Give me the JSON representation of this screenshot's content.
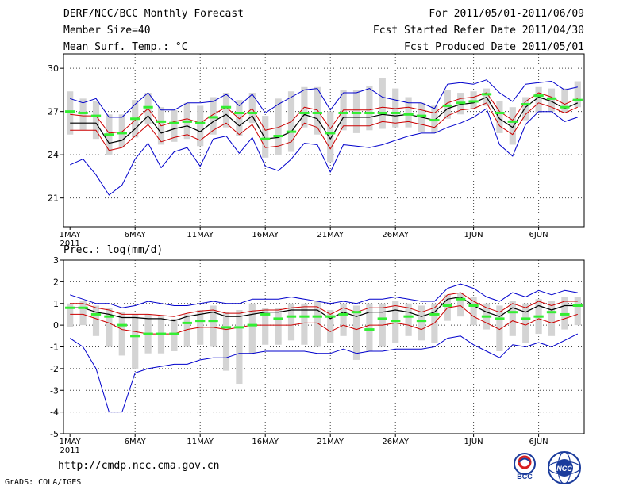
{
  "header": {
    "line1_left": "DERF/NCC/BCC Monthly Forecast",
    "line2_left": "Member Size=40",
    "line3_left": "Mean Surf. Temp.: °C",
    "line1_right": "For 2011/05/01-2011/06/09",
    "line2_right": "Fcst Started Refer Date 2011/04/30",
    "line3_right": "Fcst Produced Date 2011/05/01"
  },
  "precip_title": "Prec.: log(mm/d)",
  "footer": {
    "url": "http://cmdp.ncc.cma.gov.cn",
    "credit": "GrADS: COLA/IGES",
    "logo_left_text": "BCC",
    "logo_right_text": "NCC"
  },
  "colors": {
    "envelope": "#0000cc",
    "spread": "#cc0000",
    "mean": "#000000",
    "marker": "#33ee33",
    "bar": "#d4d4d4",
    "grid": "#444444"
  },
  "chart_data": [
    {
      "type": "line",
      "name": "temperature",
      "ylabel": "Mean Surf. Temp. (°C)",
      "x_tick_labels": [
        "1MAY",
        "6MAY",
        "11MAY",
        "16MAY",
        "21MAY",
        "26MAY",
        "1JUN",
        "6JUN"
      ],
      "x_tick_days": [
        1,
        6,
        11,
        16,
        21,
        26,
        32,
        37
      ],
      "x_year_label": "2011",
      "x_range": [
        0.5,
        40.5
      ],
      "ylim": [
        19.0,
        31.0
      ],
      "y_ticks": [
        21,
        24,
        27,
        30
      ],
      "y_tick_labels": [
        "21",
        "24",
        "27",
        "30"
      ],
      "days": [
        1,
        2,
        3,
        4,
        5,
        6,
        7,
        8,
        9,
        10,
        11,
        12,
        13,
        14,
        15,
        16,
        17,
        18,
        19,
        20,
        21,
        22,
        23,
        24,
        25,
        26,
        27,
        28,
        29,
        30,
        31,
        32,
        33,
        34,
        35,
        36,
        37,
        38,
        39,
        40
      ],
      "series": [
        {
          "name": "ensemble-mean",
          "values": [
            26.2,
            26.2,
            26.2,
            24.8,
            25.0,
            25.8,
            26.7,
            25.5,
            25.8,
            26.0,
            25.6,
            26.3,
            26.8,
            26.0,
            26.7,
            25.1,
            25.2,
            25.6,
            26.8,
            26.5,
            25.1,
            26.6,
            26.6,
            26.6,
            26.8,
            26.7,
            26.8,
            26.6,
            26.4,
            27.2,
            27.5,
            27.6,
            28.0,
            26.5,
            25.9,
            27.3,
            28.0,
            27.7,
            27.2,
            27.6
          ]
        },
        {
          "name": "spread-upper",
          "values": [
            26.8,
            26.7,
            26.7,
            25.5,
            25.6,
            26.4,
            27.2,
            26.0,
            26.3,
            26.5,
            26.2,
            26.8,
            27.3,
            26.5,
            27.2,
            25.7,
            25.9,
            26.3,
            27.3,
            27.1,
            25.8,
            27.1,
            27.1,
            27.1,
            27.3,
            27.2,
            27.3,
            27.1,
            26.9,
            27.6,
            27.9,
            28.0,
            28.3,
            27.0,
            26.4,
            27.7,
            28.3,
            28.0,
            27.5,
            27.9
          ]
        },
        {
          "name": "spread-lower",
          "values": [
            25.7,
            25.7,
            25.7,
            24.3,
            24.5,
            25.3,
            26.1,
            24.9,
            25.2,
            25.4,
            25.0,
            25.7,
            26.2,
            25.4,
            26.1,
            24.5,
            24.6,
            24.9,
            26.2,
            25.9,
            24.4,
            26.0,
            26.0,
            26.0,
            26.3,
            26.2,
            26.3,
            26.1,
            25.9,
            26.7,
            27.1,
            27.2,
            27.6,
            26.0,
            25.4,
            26.8,
            27.6,
            27.3,
            26.9,
            27.3
          ]
        },
        {
          "name": "ensemble-max",
          "values": [
            27.9,
            27.6,
            27.9,
            26.6,
            26.6,
            27.5,
            28.3,
            27.1,
            27.1,
            27.6,
            27.6,
            27.7,
            28.2,
            27.4,
            28.2,
            26.9,
            27.5,
            28.0,
            28.5,
            28.6,
            27.1,
            28.3,
            28.3,
            28.6,
            28.0,
            27.8,
            27.6,
            27.6,
            27.2,
            28.9,
            29.0,
            28.9,
            29.2,
            28.3,
            27.7,
            28.9,
            29.0,
            29.1,
            28.5,
            28.7
          ]
        },
        {
          "name": "ensemble-min",
          "values": [
            23.3,
            23.7,
            22.6,
            21.2,
            21.9,
            23.7,
            24.8,
            23.1,
            24.2,
            24.5,
            23.2,
            25.1,
            25.3,
            24.1,
            25.2,
            23.2,
            22.9,
            23.7,
            24.8,
            24.7,
            22.8,
            24.7,
            24.6,
            24.5,
            24.7,
            25.0,
            25.3,
            25.5,
            25.5,
            25.9,
            26.2,
            26.6,
            27.2,
            24.7,
            23.9,
            26.1,
            27.0,
            27.0,
            26.3,
            26.6
          ]
        },
        {
          "name": "box-top",
          "values": [
            28.4,
            27.9,
            27.7,
            26.8,
            26.8,
            27.8,
            28.3,
            27.3,
            27.1,
            27.6,
            27.4,
            28.0,
            28.3,
            27.8,
            28.3,
            26.7,
            27.9,
            28.4,
            28.7,
            28.7,
            27.0,
            28.5,
            28.5,
            28.8,
            29.3,
            28.6,
            28.0,
            27.6,
            27.4,
            28.5,
            28.3,
            28.4,
            28.6,
            27.7,
            27.3,
            28.0,
            28.7,
            28.6,
            28.6,
            29.1
          ]
        },
        {
          "name": "box-bottom",
          "values": [
            25.4,
            25.7,
            25.1,
            24.0,
            24.5,
            25.2,
            26.1,
            24.7,
            24.9,
            25.1,
            24.6,
            25.4,
            25.9,
            25.3,
            26.2,
            23.8,
            24.0,
            24.2,
            25.9,
            25.4,
            23.5,
            25.7,
            25.5,
            25.7,
            25.8,
            25.9,
            25.9,
            25.6,
            25.5,
            26.5,
            26.8,
            27.2,
            27.4,
            25.5,
            24.7,
            26.4,
            26.9,
            27.0,
            26.9,
            27.3
          ]
        },
        {
          "name": "marker",
          "values": [
            27.0,
            26.9,
            26.7,
            25.4,
            25.5,
            26.5,
            27.3,
            26.3,
            26.2,
            26.3,
            26.2,
            26.6,
            27.3,
            26.9,
            26.9,
            25.1,
            25.3,
            25.6,
            26.9,
            26.9,
            25.5,
            26.9,
            26.9,
            26.9,
            26.9,
            26.9,
            26.8,
            26.7,
            26.4,
            27.4,
            27.6,
            27.7,
            28.2,
            26.9,
            26.3,
            27.5,
            28.1,
            27.9,
            27.3,
            27.8
          ]
        }
      ]
    },
    {
      "type": "line",
      "name": "precipitation",
      "ylabel": "Prec.: log(mm/d)",
      "x_tick_labels": [
        "1MAY",
        "6MAY",
        "11MAY",
        "16MAY",
        "21MAY",
        "26MAY",
        "1JUN",
        "6JUN"
      ],
      "x_tick_days": [
        1,
        6,
        11,
        16,
        21,
        26,
        32,
        37
      ],
      "x_year_label": "2011",
      "x_range": [
        0.5,
        40.5
      ],
      "ylim": [
        -5,
        3
      ],
      "y_ticks": [
        -5,
        -4,
        -3,
        -2,
        -1,
        0,
        1,
        2,
        3
      ],
      "y_tick_labels": [
        "-5",
        "-4",
        "-3",
        "-2",
        "-1",
        "0",
        "1",
        "2",
        "3"
      ],
      "days": [
        1,
        2,
        3,
        4,
        5,
        6,
        7,
        8,
        9,
        10,
        11,
        12,
        13,
        14,
        15,
        16,
        17,
        18,
        19,
        20,
        21,
        22,
        23,
        24,
        25,
        26,
        27,
        28,
        29,
        30,
        31,
        32,
        33,
        34,
        35,
        36,
        37,
        38,
        39,
        40
      ],
      "series": [
        {
          "name": "ensemble-mean",
          "values": [
            0.8,
            0.8,
            0.6,
            0.5,
            0.35,
            0.35,
            0.3,
            0.3,
            0.2,
            0.4,
            0.5,
            0.6,
            0.4,
            0.4,
            0.5,
            0.6,
            0.6,
            0.7,
            0.7,
            0.7,
            0.3,
            0.6,
            0.4,
            0.6,
            0.6,
            0.7,
            0.6,
            0.4,
            0.6,
            1.2,
            1.3,
            0.9,
            0.6,
            0.4,
            0.8,
            0.6,
            0.9,
            0.7,
            0.9,
            0.9
          ]
        },
        {
          "name": "spread-upper",
          "values": [
            1.0,
            1.0,
            0.8,
            0.7,
            0.5,
            0.5,
            0.5,
            0.45,
            0.4,
            0.55,
            0.65,
            0.7,
            0.55,
            0.55,
            0.65,
            0.7,
            0.7,
            0.8,
            0.85,
            0.85,
            0.5,
            0.8,
            0.6,
            0.8,
            0.8,
            0.9,
            0.8,
            0.6,
            0.8,
            1.4,
            1.5,
            1.1,
            0.8,
            0.6,
            1.0,
            0.8,
            1.1,
            0.9,
            1.1,
            1.1
          ]
        },
        {
          "name": "spread-lower",
          "values": [
            0.5,
            0.5,
            0.3,
            0.1,
            -0.2,
            -0.3,
            -0.4,
            -0.4,
            -0.4,
            -0.2,
            -0.1,
            -0.1,
            -0.2,
            -0.1,
            0.0,
            0.0,
            0.0,
            0.0,
            0.1,
            0.1,
            -0.3,
            0.0,
            -0.2,
            0.0,
            0.0,
            0.1,
            0.0,
            -0.2,
            0.1,
            0.8,
            0.9,
            0.4,
            0.1,
            -0.2,
            0.2,
            0.0,
            0.3,
            0.1,
            0.3,
            0.5
          ]
        },
        {
          "name": "ensemble-max",
          "values": [
            1.4,
            1.2,
            1.0,
            1.0,
            0.8,
            0.9,
            1.1,
            1.0,
            0.9,
            0.9,
            1.0,
            1.1,
            1.0,
            1.0,
            1.2,
            1.2,
            1.2,
            1.3,
            1.2,
            1.1,
            1.0,
            1.1,
            1.0,
            1.2,
            1.2,
            1.3,
            1.2,
            1.1,
            1.1,
            1.7,
            1.9,
            1.7,
            1.3,
            1.1,
            1.5,
            1.3,
            1.6,
            1.4,
            1.6,
            1.5
          ]
        },
        {
          "name": "ensemble-min",
          "values": [
            -0.6,
            -1.0,
            -2.0,
            -4.0,
            -4.0,
            -2.2,
            -2.0,
            -1.9,
            -1.8,
            -1.8,
            -1.6,
            -1.5,
            -1.5,
            -1.3,
            -1.3,
            -1.2,
            -1.2,
            -1.2,
            -1.2,
            -1.3,
            -1.3,
            -1.1,
            -1.3,
            -1.2,
            -1.2,
            -1.1,
            -1.1,
            -1.1,
            -1.0,
            -0.6,
            -0.5,
            -0.9,
            -1.2,
            -1.5,
            -0.9,
            -1.0,
            -0.8,
            -1.0,
            -0.7,
            -0.4
          ]
        },
        {
          "name": "box-top",
          "values": [
            1.0,
            1.1,
            0.9,
            0.8,
            0.6,
            0.5,
            0.5,
            0.4,
            0.3,
            0.5,
            0.7,
            0.9,
            0.6,
            0.7,
            1.0,
            0.8,
            0.8,
            1.0,
            1.0,
            1.1,
            0.7,
            1.0,
            0.9,
            1.0,
            1.0,
            1.1,
            1.0,
            0.9,
            1.0,
            1.4,
            1.5,
            1.3,
            1.0,
            0.9,
            1.1,
            1.0,
            1.2,
            1.1,
            1.3,
            1.3
          ]
        },
        {
          "name": "box-bottom",
          "values": [
            -0.1,
            0.0,
            -0.5,
            -1.0,
            -1.4,
            -2.0,
            -1.3,
            -1.3,
            -1.2,
            -1.0,
            -0.9,
            -1.0,
            -2.1,
            -2.7,
            -1.3,
            -0.9,
            -0.9,
            -0.7,
            -0.9,
            -1.0,
            -0.8,
            -0.5,
            -1.6,
            -1.2,
            -1.0,
            -0.8,
            -0.5,
            -0.7,
            -0.8,
            0.2,
            0.4,
            0.0,
            -0.2,
            -1.2,
            -0.5,
            -0.8,
            -0.4,
            -0.5,
            -0.2,
            0.0
          ]
        },
        {
          "name": "marker",
          "values": [
            0.8,
            0.8,
            0.5,
            0.4,
            0.0,
            -0.5,
            -0.4,
            -0.4,
            -0.4,
            0.1,
            0.2,
            0.2,
            -0.1,
            -0.1,
            0.0,
            0.5,
            0.3,
            0.4,
            0.4,
            0.4,
            0.4,
            0.5,
            0.6,
            -0.2,
            0.3,
            0.2,
            0.4,
            0.2,
            0.5,
            0.9,
            1.2,
            0.9,
            0.4,
            0.3,
            0.6,
            0.3,
            0.4,
            0.6,
            0.5,
            0.9
          ]
        }
      ]
    }
  ]
}
